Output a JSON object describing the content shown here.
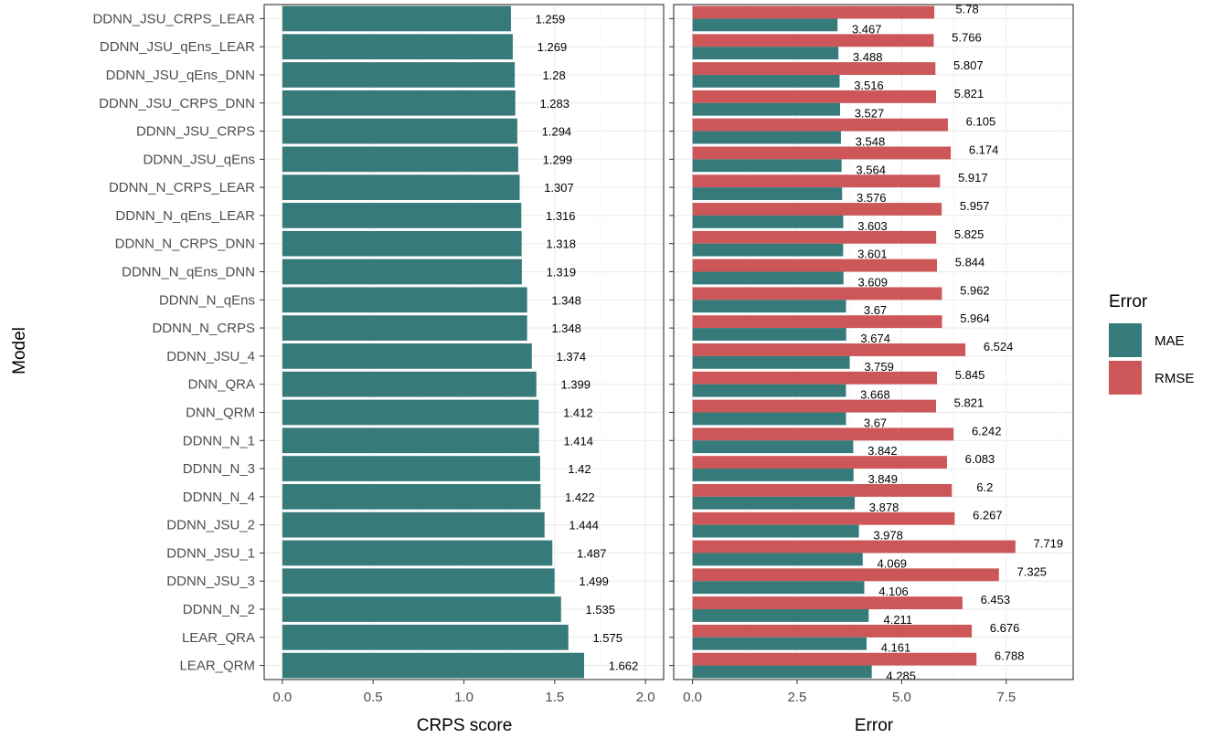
{
  "chart_data": [
    {
      "type": "bar",
      "orientation": "horizontal",
      "categories": [
        "DDNN_JSU_CRPS_LEAR",
        "DDNN_JSU_qEns_LEAR",
        "DDNN_JSU_qEns_DNN",
        "DDNN_JSU_CRPS_DNN",
        "DDNN_JSU_CRPS",
        "DDNN_JSU_qEns",
        "DDNN_N_CRPS_LEAR",
        "DDNN_N_qEns_LEAR",
        "DDNN_N_CRPS_DNN",
        "DDNN_N_qEns_DNN",
        "DDNN_N_qEns",
        "DDNN_N_CRPS",
        "DDNN_JSU_4",
        "DNN_QRA",
        "DNN_QRM",
        "DDNN_N_1",
        "DDNN_N_3",
        "DDNN_N_4",
        "DDNN_JSU_2",
        "DDNN_JSU_1",
        "DDNN_JSU_3",
        "DDNN_N_2",
        "LEAR_QRA",
        "LEAR_QRM"
      ],
      "values": [
        1.259,
        1.269,
        1.28,
        1.283,
        1.294,
        1.299,
        1.307,
        1.316,
        1.318,
        1.319,
        1.348,
        1.348,
        1.374,
        1.399,
        1.412,
        1.414,
        1.42,
        1.422,
        1.444,
        1.487,
        1.499,
        1.535,
        1.575,
        1.662
      ],
      "value_labels": [
        "1.259",
        "1.269",
        "1.28",
        "1.283",
        "1.294",
        "1.299",
        "1.307",
        "1.316",
        "1.318",
        "1.319",
        "1.348",
        "1.348",
        "1.374",
        "1.399",
        "1.412",
        "1.414",
        "1.42",
        "1.422",
        "1.444",
        "1.487",
        "1.499",
        "1.535",
        "1.575",
        "1.662"
      ],
      "xlabel": "CRPS score",
      "ylabel": "Model",
      "xlim": [
        -0.1,
        2.1
      ],
      "xticks": [
        "0.0",
        "0.5",
        "1.0",
        "1.5",
        "2.0"
      ],
      "xtick_values": [
        0,
        0.5,
        1.0,
        1.5,
        2.0
      ],
      "color": "#367a7a",
      "grid": true
    },
    {
      "type": "bar",
      "orientation": "horizontal",
      "grouped": true,
      "categories": [
        "DDNN_JSU_CRPS_LEAR",
        "DDNN_JSU_qEns_LEAR",
        "DDNN_JSU_qEns_DNN",
        "DDNN_JSU_CRPS_DNN",
        "DDNN_JSU_CRPS",
        "DDNN_JSU_qEns",
        "DDNN_N_CRPS_LEAR",
        "DDNN_N_qEns_LEAR",
        "DDNN_N_CRPS_DNN",
        "DDNN_N_qEns_DNN",
        "DDNN_N_qEns",
        "DDNN_N_CRPS",
        "DDNN_JSU_4",
        "DNN_QRA",
        "DNN_QRM",
        "DDNN_N_1",
        "DDNN_N_3",
        "DDNN_N_4",
        "DDNN_JSU_2",
        "DDNN_JSU_1",
        "DDNN_JSU_3",
        "DDNN_N_2",
        "LEAR_QRA",
        "LEAR_QRM"
      ],
      "series": [
        {
          "name": "MAE",
          "color": "#367a7a",
          "values": [
            3.467,
            3.488,
            3.516,
            3.527,
            3.548,
            3.564,
            3.576,
            3.603,
            3.601,
            3.609,
            3.67,
            3.674,
            3.759,
            3.668,
            3.67,
            3.842,
            3.849,
            3.878,
            3.978,
            4.069,
            4.106,
            4.211,
            4.161,
            4.285
          ],
          "value_labels": [
            "3.467",
            "3.488",
            "3.516",
            "3.527",
            "3.548",
            "3.564",
            "3.576",
            "3.603",
            "3.601",
            "3.609",
            "3.67",
            "3.674",
            "3.759",
            "3.668",
            "3.67",
            "3.842",
            "3.849",
            "3.878",
            "3.978",
            "4.069",
            "4.106",
            "4.211",
            "4.161",
            "4.285"
          ]
        },
        {
          "name": "RMSE",
          "color": "#cd5658",
          "values": [
            5.78,
            5.766,
            5.807,
            5.821,
            6.105,
            6.174,
            5.917,
            5.957,
            5.825,
            5.844,
            5.962,
            5.964,
            6.524,
            5.845,
            5.821,
            6.242,
            6.083,
            6.2,
            6.267,
            7.719,
            7.325,
            6.453,
            6.676,
            6.788
          ],
          "value_labels": [
            "5.78",
            "5.766",
            "5.807",
            "5.821",
            "6.105",
            "6.174",
            "5.917",
            "5.957",
            "5.825",
            "5.844",
            "5.962",
            "5.964",
            "6.524",
            "5.845",
            "5.821",
            "6.242",
            "6.083",
            "6.2",
            "6.267",
            "7.719",
            "7.325",
            "6.453",
            "6.676",
            "6.788"
          ]
        }
      ],
      "xlabel": "Error",
      "xlim": [
        -0.45,
        9.1
      ],
      "xticks": [
        "0.0",
        "2.5",
        "5.0",
        "7.5"
      ],
      "xtick_values": [
        0,
        2.5,
        5.0,
        7.5
      ],
      "grid": true
    }
  ],
  "legend": {
    "title": "Error",
    "placement": "right",
    "items": [
      {
        "label": "MAE",
        "color": "#367a7a"
      },
      {
        "label": "RMSE",
        "color": "#cd5658"
      }
    ]
  }
}
